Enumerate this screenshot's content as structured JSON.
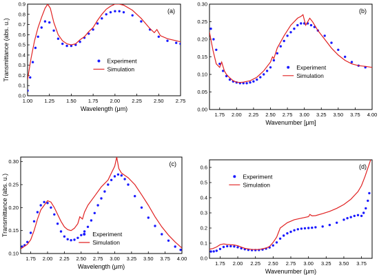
{
  "figure": {
    "colors": {
      "experiment": "#1a1aff",
      "simulation": "#e02020",
      "axis": "#000000"
    }
  },
  "chart_data": [
    {
      "type": "line",
      "label": "(a)",
      "xlabel": "Wavelength (μm)",
      "ylabel": "Transmittance (abs. u.)",
      "xlim": [
        1.0,
        2.75
      ],
      "ylim": [
        0.0,
        0.9
      ],
      "xticks": [
        "1.00",
        "1.25",
        "1.50",
        "1.75",
        "2.00",
        "2.25",
        "2.50",
        "2.75"
      ],
      "yticks": [
        "0.0",
        "0.1",
        "0.2",
        "0.3",
        "0.4",
        "0.5",
        "0.6",
        "0.7",
        "0.8",
        "0.9"
      ],
      "legend": {
        "placement": "center",
        "entries": [
          "Experiment",
          "Simulation"
        ]
      },
      "series": [
        {
          "name": "Experiment",
          "style": "markers",
          "x": [
            1.0,
            1.03,
            1.06,
            1.09,
            1.12,
            1.16,
            1.2,
            1.25,
            1.3,
            1.35,
            1.4,
            1.45,
            1.5,
            1.55,
            1.6,
            1.65,
            1.7,
            1.75,
            1.8,
            1.85,
            1.9,
            1.95,
            2.0,
            2.05,
            2.1,
            2.2,
            2.3,
            2.4,
            2.5,
            2.6,
            2.7,
            2.75
          ],
          "y": [
            0.05,
            0.18,
            0.33,
            0.47,
            0.58,
            0.67,
            0.73,
            0.72,
            0.64,
            0.56,
            0.51,
            0.49,
            0.49,
            0.5,
            0.53,
            0.57,
            0.61,
            0.65,
            0.71,
            0.76,
            0.8,
            0.82,
            0.83,
            0.83,
            0.82,
            0.79,
            0.73,
            0.65,
            0.58,
            0.54,
            0.52,
            0.51
          ]
        },
        {
          "name": "Simulation",
          "style": "line",
          "x": [
            1.0,
            1.04,
            1.08,
            1.12,
            1.16,
            1.2,
            1.23,
            1.26,
            1.3,
            1.35,
            1.4,
            1.45,
            1.5,
            1.55,
            1.6,
            1.65,
            1.7,
            1.75,
            1.8,
            1.85,
            1.9,
            1.95,
            2.0,
            2.05,
            2.1,
            2.2,
            2.3,
            2.4,
            2.45,
            2.48,
            2.52,
            2.6,
            2.7,
            2.75
          ],
          "y": [
            0.16,
            0.37,
            0.54,
            0.67,
            0.77,
            0.86,
            0.9,
            0.86,
            0.72,
            0.6,
            0.54,
            0.51,
            0.5,
            0.51,
            0.55,
            0.58,
            0.63,
            0.67,
            0.74,
            0.8,
            0.85,
            0.88,
            0.9,
            0.9,
            0.89,
            0.84,
            0.76,
            0.66,
            0.62,
            0.65,
            0.59,
            0.56,
            0.54,
            0.53
          ]
        }
      ]
    },
    {
      "type": "line",
      "label": "(b)",
      "xlabel": "Wavenumber [μm]",
      "ylabel": "",
      "xlim": [
        1.6,
        4.0
      ],
      "ylim": [
        0.0,
        0.3
      ],
      "xticks": [
        "1.75",
        "2.00",
        "2.25",
        "2.50",
        "2.75",
        "3.00",
        "3.25",
        "3.50",
        "3.75",
        "4.00"
      ],
      "yticks": [
        "0.00",
        "0.05",
        "0.10",
        "0.15",
        "0.20",
        "0.25",
        "0.30"
      ],
      "legend": {
        "placement": "center-right",
        "entries": [
          "Experiment",
          "Simulation"
        ]
      },
      "series": [
        {
          "name": "Experiment",
          "style": "markers",
          "x": [
            1.62,
            1.66,
            1.7,
            1.75,
            1.8,
            1.85,
            1.9,
            1.95,
            2.0,
            2.05,
            2.1,
            2.15,
            2.2,
            2.25,
            2.3,
            2.35,
            2.4,
            2.45,
            2.5,
            2.55,
            2.6,
            2.65,
            2.7,
            2.75,
            2.8,
            2.85,
            2.9,
            2.95,
            3.0,
            3.05,
            3.1,
            3.15,
            3.2,
            3.3,
            3.4,
            3.5,
            3.6,
            3.7,
            3.8,
            3.9
          ],
          "y": [
            0.23,
            0.2,
            0.17,
            0.13,
            0.11,
            0.095,
            0.085,
            0.08,
            0.077,
            0.075,
            0.075,
            0.075,
            0.077,
            0.08,
            0.085,
            0.092,
            0.1,
            0.11,
            0.12,
            0.14,
            0.16,
            0.18,
            0.195,
            0.21,
            0.22,
            0.23,
            0.24,
            0.245,
            0.245,
            0.245,
            0.24,
            0.235,
            0.225,
            0.21,
            0.19,
            0.17,
            0.15,
            0.135,
            0.125,
            0.12
          ]
        },
        {
          "name": "Simulation",
          "style": "line",
          "x": [
            1.6,
            1.65,
            1.7,
            1.75,
            1.78,
            1.82,
            1.85,
            1.9,
            1.95,
            2.0,
            2.05,
            2.1,
            2.2,
            2.3,
            2.4,
            2.5,
            2.53,
            2.55,
            2.6,
            2.7,
            2.8,
            2.9,
            2.95,
            2.98,
            3.02,
            3.05,
            3.08,
            3.12,
            3.2,
            3.3,
            3.4,
            3.5,
            3.6,
            3.7,
            3.8,
            3.9,
            4.0
          ],
          "y": [
            0.22,
            0.17,
            0.13,
            0.12,
            0.135,
            0.11,
            0.1,
            0.09,
            0.082,
            0.078,
            0.077,
            0.078,
            0.082,
            0.092,
            0.11,
            0.135,
            0.15,
            0.145,
            0.175,
            0.21,
            0.24,
            0.26,
            0.265,
            0.27,
            0.24,
            0.25,
            0.26,
            0.25,
            0.225,
            0.2,
            0.175,
            0.155,
            0.14,
            0.13,
            0.125,
            0.123,
            0.12
          ]
        }
      ]
    },
    {
      "type": "line",
      "label": "(c)",
      "xlabel": "Wavelength (μm)",
      "ylabel": "Transmittance (abs. u.)",
      "xlim": [
        1.6,
        4.0
      ],
      "ylim": [
        0.1,
        0.31
      ],
      "xticks": [
        "1.75",
        "2.00",
        "2.25",
        "2.50",
        "2.75",
        "3.00",
        "3.25",
        "3.50",
        "3.75",
        "4.00"
      ],
      "yticks": [
        "0.10",
        "0.15",
        "0.20",
        "0.25",
        "0.30"
      ],
      "legend": {
        "placement": "bottom-center",
        "entries": [
          "Experiment",
          "Simulation"
        ]
      },
      "series": [
        {
          "name": "Experiment",
          "style": "markers",
          "x": [
            1.62,
            1.66,
            1.7,
            1.75,
            1.8,
            1.85,
            1.9,
            1.95,
            2.0,
            2.05,
            2.1,
            2.15,
            2.2,
            2.25,
            2.3,
            2.35,
            2.4,
            2.45,
            2.5,
            2.55,
            2.6,
            2.65,
            2.7,
            2.75,
            2.8,
            2.85,
            2.9,
            2.95,
            3.0,
            3.05,
            3.1,
            3.15,
            3.2,
            3.3,
            3.4,
            3.5,
            3.6,
            3.7,
            3.8,
            3.9,
            3.98
          ],
          "y": [
            0.115,
            0.118,
            0.125,
            0.145,
            0.17,
            0.19,
            0.205,
            0.212,
            0.21,
            0.2,
            0.185,
            0.165,
            0.148,
            0.137,
            0.131,
            0.129,
            0.13,
            0.134,
            0.14,
            0.148,
            0.158,
            0.172,
            0.188,
            0.205,
            0.22,
            0.235,
            0.25,
            0.26,
            0.268,
            0.272,
            0.27,
            0.262,
            0.25,
            0.225,
            0.2,
            0.178,
            0.16,
            0.142,
            0.128,
            0.115,
            0.108
          ]
        },
        {
          "name": "Simulation",
          "style": "line",
          "x": [
            1.6,
            1.7,
            1.75,
            1.8,
            1.85,
            1.9,
            1.95,
            2.0,
            2.05,
            2.1,
            2.15,
            2.2,
            2.25,
            2.3,
            2.35,
            2.4,
            2.45,
            2.48,
            2.52,
            2.55,
            2.6,
            2.7,
            2.8,
            2.9,
            2.95,
            3.0,
            3.03,
            3.06,
            3.1,
            3.2,
            3.3,
            3.4,
            3.5,
            3.6,
            3.7,
            3.8,
            3.9,
            4.0
          ],
          "y": [
            0.11,
            0.12,
            0.13,
            0.15,
            0.175,
            0.195,
            0.205,
            0.215,
            0.212,
            0.2,
            0.185,
            0.17,
            0.158,
            0.152,
            0.15,
            0.155,
            0.165,
            0.18,
            0.175,
            0.19,
            0.205,
            0.225,
            0.245,
            0.26,
            0.275,
            0.29,
            0.31,
            0.285,
            0.275,
            0.265,
            0.25,
            0.228,
            0.205,
            0.18,
            0.158,
            0.14,
            0.125,
            0.112
          ]
        }
      ]
    },
    {
      "type": "line",
      "label": "(d)",
      "xlabel": "Wavenumber (μm)",
      "ylabel": "",
      "xlim": [
        1.6,
        3.9
      ],
      "ylim": [
        0.0,
        0.65
      ],
      "xticks": [
        "1.75",
        "2.00",
        "2.25",
        "2.50",
        "2.75",
        "3.00",
        "3.25",
        "3.50",
        "3.75"
      ],
      "yticks": [
        "0.0",
        "0.1",
        "0.2",
        "0.3",
        "0.4",
        "0.5",
        "0.6"
      ],
      "legend": {
        "placement": "top-left",
        "entries": [
          "Experiment",
          "Simulation"
        ]
      },
      "series": [
        {
          "name": "Experiment",
          "style": "markers",
          "x": [
            1.62,
            1.66,
            1.7,
            1.75,
            1.8,
            1.85,
            1.9,
            1.95,
            2.0,
            2.05,
            2.1,
            2.15,
            2.2,
            2.25,
            2.3,
            2.35,
            2.4,
            2.45,
            2.5,
            2.55,
            2.6,
            2.65,
            2.7,
            2.75,
            2.8,
            2.85,
            2.9,
            2.95,
            3.0,
            3.05,
            3.1,
            3.2,
            3.3,
            3.4,
            3.5,
            3.55,
            3.6,
            3.65,
            3.7,
            3.75,
            3.78,
            3.81,
            3.84,
            3.86
          ],
          "y": [
            0.045,
            0.046,
            0.05,
            0.062,
            0.075,
            0.08,
            0.08,
            0.078,
            0.073,
            0.066,
            0.06,
            0.056,
            0.054,
            0.054,
            0.055,
            0.058,
            0.064,
            0.072,
            0.085,
            0.105,
            0.13,
            0.15,
            0.165,
            0.175,
            0.185,
            0.192,
            0.196,
            0.198,
            0.2,
            0.202,
            0.205,
            0.21,
            0.22,
            0.235,
            0.255,
            0.265,
            0.272,
            0.28,
            0.285,
            0.28,
            0.3,
            0.33,
            0.38,
            0.43
          ]
        },
        {
          "name": "Simulation",
          "style": "line",
          "x": [
            1.6,
            1.65,
            1.7,
            1.75,
            1.8,
            1.85,
            1.9,
            1.95,
            2.0,
            2.05,
            2.1,
            2.2,
            2.3,
            2.4,
            2.45,
            2.5,
            2.55,
            2.6,
            2.7,
            2.8,
            2.9,
            3.0,
            3.02,
            3.05,
            3.1,
            3.2,
            3.3,
            3.4,
            3.5,
            3.6,
            3.7,
            3.75,
            3.8,
            3.85,
            3.88
          ],
          "y": [
            0.06,
            0.065,
            0.075,
            0.09,
            0.095,
            0.092,
            0.09,
            0.088,
            0.083,
            0.074,
            0.066,
            0.058,
            0.058,
            0.068,
            0.078,
            0.105,
            0.14,
            0.2,
            0.235,
            0.255,
            0.265,
            0.275,
            0.29,
            0.28,
            0.282,
            0.295,
            0.31,
            0.33,
            0.355,
            0.39,
            0.44,
            0.48,
            0.54,
            0.61,
            0.65
          ]
        }
      ]
    }
  ]
}
